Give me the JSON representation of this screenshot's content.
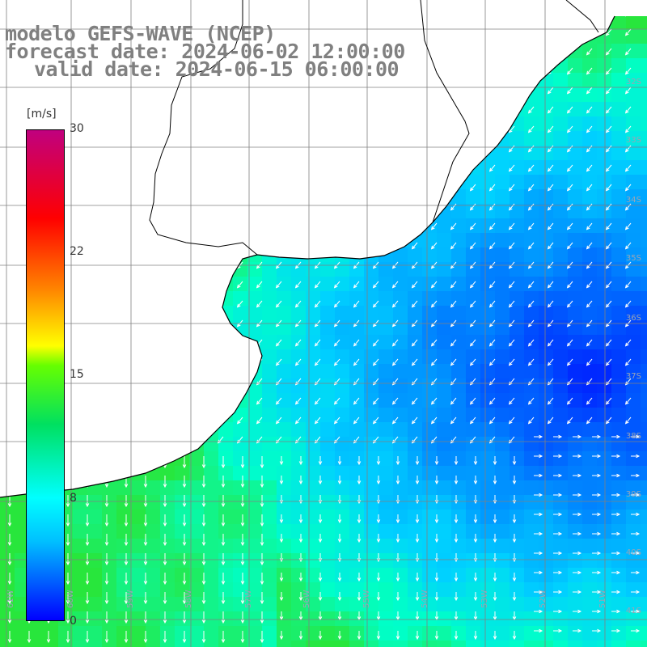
{
  "header": {
    "line1": "modelo GEFS-WAVE (NCEP)",
    "line2": "forecast date: 2024-06-02 12:00:00",
    "line3": "valid date: 2024-06-15 06:00:00"
  },
  "colorbar": {
    "unit": "[m/s]",
    "ticks": [
      "30",
      "22",
      "15",
      "8",
      "0"
    ],
    "colors": [
      "#0000ff",
      "#00bfff",
      "#00ffff",
      "#00e060",
      "#66ff00",
      "#ffff00",
      "#ff8000",
      "#ff0000",
      "#c0007f"
    ]
  },
  "map": {
    "lat_labels": [
      "32S",
      "33S",
      "34S",
      "35S",
      "36S",
      "37S",
      "38S",
      "39S",
      "40S",
      "41S"
    ],
    "lon_labels": [
      "61W",
      "60W",
      "59W",
      "58W",
      "57W",
      "56W",
      "55W",
      "54W",
      "53W",
      "52W",
      "51W"
    ],
    "land_color": "#ffffff",
    "grid_color": "#808080",
    "coast_color": "#000000",
    "arrow_color": "#ffffff"
  }
}
